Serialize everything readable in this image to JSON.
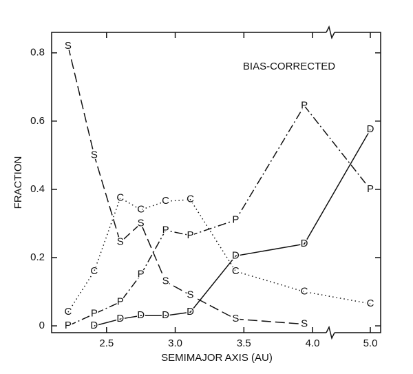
{
  "chart_data": {
    "type": "line",
    "annotation": "BIAS-CORRECTED",
    "xlabel": "SEMIMAJOR AXIS (AU)",
    "ylabel": "FRACTION",
    "x": [
      2.22,
      2.41,
      2.6,
      2.75,
      2.93,
      3.11,
      3.44,
      3.94,
      5.0
    ],
    "xlim": [
      2.1,
      4.12
    ],
    "x2lim": [
      4.6,
      5.1
    ],
    "xticks": [
      2.5,
      {
        "value": 3,
        "label": "3.0"
      },
      3.5,
      {
        "value": 4,
        "label": "4.0"
      },
      {
        "value": 5,
        "label": "5.0"
      }
    ],
    "ylim": [
      -0.02,
      0.86
    ],
    "yticks": [
      0,
      0.2,
      0.4,
      0.6,
      0.8
    ],
    "series": [
      {
        "name": "S",
        "color": "#111111",
        "dash": "14 6",
        "values": [
          0.82,
          0.5,
          0.245,
          0.3,
          0.13,
          0.09,
          0.02,
          0.005,
          null
        ]
      },
      {
        "name": "C",
        "color": "#111111",
        "dash": "1.5 4",
        "values": [
          0.04,
          0.16,
          0.375,
          0.34,
          0.365,
          0.37,
          0.16,
          0.1,
          0.065
        ]
      },
      {
        "name": "P",
        "color": "#111111",
        "dash": "12 4 2 4",
        "values": [
          0.0,
          0.035,
          0.07,
          0.15,
          0.28,
          0.265,
          0.31,
          0.645,
          0.4
        ]
      },
      {
        "name": "D",
        "color": "#111111",
        "dash": "",
        "values": [
          null,
          0.0,
          0.02,
          0.03,
          0.03,
          0.04,
          0.205,
          0.24,
          0.575
        ]
      }
    ]
  }
}
